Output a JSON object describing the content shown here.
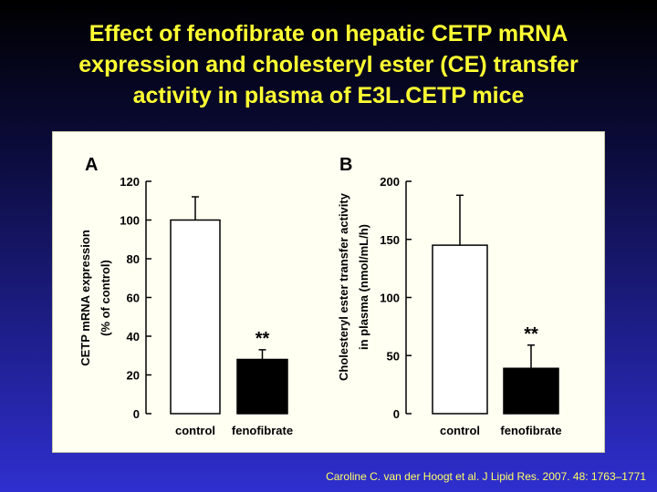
{
  "title_lines": [
    "Effect of fenofibrate on hepatic CETP mRNA",
    "expression and cholesteryl ester (CE) transfer",
    "activity in plasma of E3L.CETP mice"
  ],
  "citation": "Caroline C. van der Hoogt et al. J Lipid Res. 2007. 48: 1763–1771",
  "chart_data": [
    {
      "type": "bar",
      "panel": "A",
      "categories": [
        "control",
        "fenofibrate"
      ],
      "values": [
        100,
        28
      ],
      "errors": [
        12,
        5
      ],
      "fills": [
        "#ffffff",
        "#000000"
      ],
      "ylabel": [
        "CETP mRNA expression",
        "(% of control)"
      ],
      "ylim": [
        0,
        120
      ],
      "yticks": [
        0,
        20,
        40,
        60,
        80,
        100,
        120
      ],
      "annotations": [
        "",
        "**"
      ]
    },
    {
      "type": "bar",
      "panel": "B",
      "categories": [
        "control",
        "fenofibrate"
      ],
      "values": [
        145,
        39
      ],
      "errors": [
        43,
        20
      ],
      "fills": [
        "#ffffff",
        "#000000"
      ],
      "ylabel": [
        "Cholesteryl ester transfer activity",
        "in plasma (nmol/mL/h)"
      ],
      "ylim": [
        0,
        200
      ],
      "yticks": [
        0,
        50,
        100,
        150,
        200
      ],
      "annotations": [
        "",
        "**"
      ]
    }
  ]
}
